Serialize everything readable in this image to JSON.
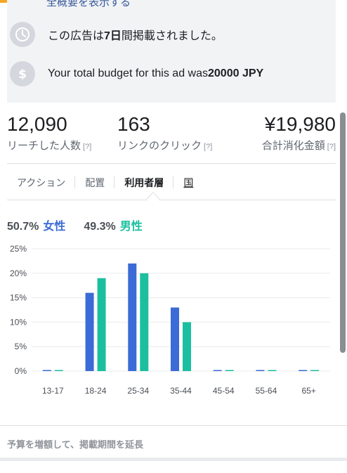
{
  "info": {
    "link_text": "全概要を表示する",
    "ad_period_prefix": "この広告は",
    "ad_period_bold": "7日",
    "ad_period_suffix": "間掲載されました。",
    "budget_prefix": "Your total budget for this ad was",
    "budget_bold": "20000 JPY",
    "icons": [
      "clock-icon",
      "dollar-icon"
    ]
  },
  "stats": [
    {
      "value": "12,090",
      "label": "リーチした人数",
      "help": "[?]"
    },
    {
      "value": "163",
      "label": "リンクのクリック",
      "help": "[?]"
    },
    {
      "value": "¥19,980",
      "label": "合計消化金額",
      "help": "[?]"
    }
  ],
  "tabs": [
    {
      "label": "アクション"
    },
    {
      "label": "配置"
    },
    {
      "label": "利用者層"
    },
    {
      "label": "国"
    }
  ],
  "gender": {
    "female_pct": "50.7%",
    "female_label": "女性",
    "male_pct": "49.3%",
    "male_label": "男性"
  },
  "colors": {
    "female": "#3b6bd6",
    "male": "#1bbf9f",
    "accent": "#f5a623",
    "link": "#365899"
  },
  "chart_data": {
    "type": "bar",
    "categories": [
      "13-17",
      "18-24",
      "25-34",
      "35-44",
      "45-54",
      "55-64",
      "65+"
    ],
    "series": [
      {
        "name": "女性",
        "values": [
          0,
          16,
          22,
          13,
          0,
          0,
          0
        ]
      },
      {
        "name": "男性",
        "values": [
          0,
          19,
          20,
          10,
          0,
          0,
          0
        ]
      }
    ],
    "yticks": [
      "0%",
      "5%",
      "10%",
      "15%",
      "20%",
      "25%"
    ],
    "ylim": [
      0,
      25
    ],
    "grid": true,
    "legend": "top-left"
  },
  "footer": {
    "extend_text": "予算を増額して、掲載期間を延長"
  }
}
